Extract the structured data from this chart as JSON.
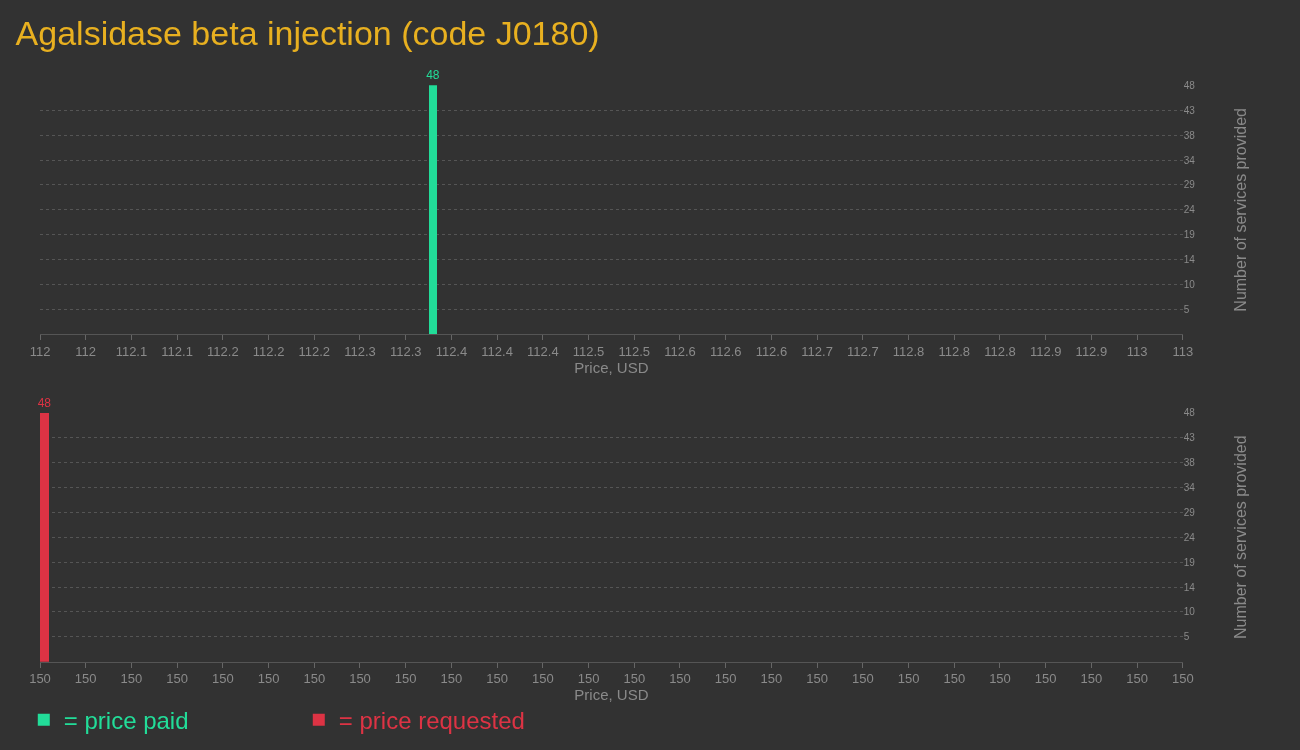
{
  "chart_data": [
    {
      "type": "bar",
      "title": "Agalsidase beta injection (code J0180)",
      "xlabel": "Price, USD",
      "ylabel": "Number of services provided",
      "x": [
        112.34
      ],
      "series": [
        {
          "name": "= price paid",
          "color": "#22dd99",
          "values": [
            48
          ]
        }
      ],
      "xlim": [
        112,
        113
      ],
      "xticks": [
        112,
        {
          "value": 112.04,
          "label": "112"
        },
        {
          "value": 112.08,
          "label": "112.1"
        },
        {
          "value": 112.12,
          "label": "112.1"
        },
        {
          "value": 112.16,
          "label": "112.2"
        },
        112.2,
        {
          "value": 112.24,
          "label": "112.2"
        },
        {
          "value": 112.28,
          "label": "112.3"
        },
        {
          "value": 112.32,
          "label": "112.3"
        },
        {
          "value": 112.36,
          "label": "112.4"
        },
        112.4,
        {
          "value": 112.44,
          "label": "112.4"
        },
        {
          "value": 112.48,
          "label": "112.5"
        },
        {
          "value": 112.52,
          "label": "112.5"
        },
        {
          "value": 112.56,
          "label": "112.6"
        },
        112.6,
        {
          "value": 112.64,
          "label": "112.6"
        },
        {
          "value": 112.68,
          "label": "112.7"
        },
        {
          "value": 112.72,
          "label": "112.7"
        },
        {
          "value": 112.76,
          "label": "112.8"
        },
        112.8,
        {
          "value": 112.84,
          "label": "112.8"
        },
        {
          "value": 112.88,
          "label": "112.9"
        },
        {
          "value": 112.92,
          "label": "112.9"
        },
        {
          "value": 112.96,
          "label": "113"
        },
        113
      ],
      "ylim": [
        0,
        48
      ],
      "yticks": [
        {
          "value": 4.8,
          "label": "5"
        },
        {
          "value": 9.6,
          "label": "10"
        },
        {
          "value": 14.4,
          "label": "14"
        },
        {
          "value": 19.2,
          "label": "19"
        },
        24,
        {
          "value": 28.8,
          "label": "29"
        },
        {
          "value": 33.6,
          "label": "34"
        },
        {
          "value": 38.4,
          "label": "38"
        },
        {
          "value": 43.2,
          "label": "43"
        },
        48
      ],
      "grid": "y",
      "data_labels": true,
      "legend": "bottom left"
    },
    {
      "type": "bar",
      "xlabel": "Price, USD",
      "ylabel": "Number of services provided",
      "x": [
        150
      ],
      "series": [
        {
          "name": "= price requested",
          "color": "#dd3344",
          "values": [
            48
          ]
        }
      ],
      "xlim": [
        150,
        150.25
      ],
      "xticks": [
        150,
        {
          "value": 150.01,
          "label": "150"
        },
        {
          "value": 150.02,
          "label": "150"
        },
        {
          "value": 150.03,
          "label": "150"
        },
        {
          "value": 150.04,
          "label": "150"
        },
        {
          "value": 150.05,
          "label": "150"
        },
        {
          "value": 150.06,
          "label": "150"
        },
        {
          "value": 150.07,
          "label": "150"
        },
        {
          "value": 150.08,
          "label": "150"
        },
        {
          "value": 150.09,
          "label": "150"
        },
        {
          "value": 150.1,
          "label": "150"
        },
        {
          "value": 150.11,
          "label": "150"
        },
        {
          "value": 150.12,
          "label": "150"
        },
        {
          "value": 150.13,
          "label": "150"
        },
        {
          "value": 150.14,
          "label": "150"
        },
        {
          "value": 150.15,
          "label": "150"
        },
        {
          "value": 150.16,
          "label": "150"
        },
        {
          "value": 150.17,
          "label": "150"
        },
        {
          "value": 150.18,
          "label": "150"
        },
        {
          "value": 150.19,
          "label": "150"
        },
        {
          "value": 150.2,
          "label": "150"
        },
        {
          "value": 150.21,
          "label": "150"
        },
        {
          "value": 150.22,
          "label": "150"
        },
        {
          "value": 150.23,
          "label": "150"
        },
        {
          "value": 150.24,
          "label": "150"
        },
        {
          "value": 150.25,
          "label": "150"
        }
      ],
      "ylim": [
        0,
        48
      ],
      "yticks": [
        {
          "value": 4.8,
          "label": "5"
        },
        {
          "value": 9.6,
          "label": "10"
        },
        {
          "value": 14.4,
          "label": "14"
        },
        {
          "value": 19.2,
          "label": "19"
        },
        24,
        {
          "value": 28.8,
          "label": "29"
        },
        {
          "value": 33.6,
          "label": "34"
        },
        {
          "value": 38.4,
          "label": "38"
        },
        {
          "value": 43.2,
          "label": "43"
        },
        48
      ],
      "grid": "y",
      "data_labels": true,
      "legend": "bottom left"
    }
  ]
}
